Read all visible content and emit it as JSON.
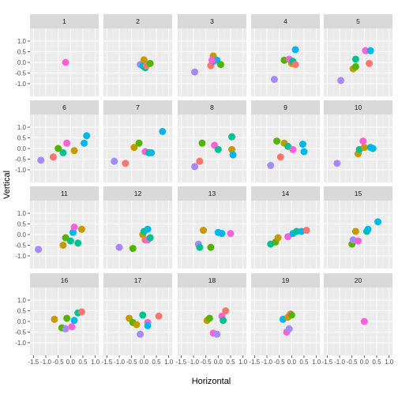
{
  "chart_data": {
    "type": "scatter",
    "faceted": true,
    "xlabel": "Horizontal",
    "ylabel": "Vertical",
    "xlim": [
      -1.5,
      1.0
    ],
    "ylim": [
      -1.5,
      1.5
    ],
    "x_ticks": [
      -1.5,
      -1.0,
      -0.5,
      0.0,
      0.5,
      1.0
    ],
    "x_tick_labels": [
      "-1.5",
      "-1.0",
      "-0.5",
      "0.0",
      "0.5",
      "1.0"
    ],
    "y_ticks": [
      -1.0,
      -0.5,
      0.0,
      0.5,
      1.0
    ],
    "y_tick_labels": [
      "-1.0",
      "-0.5",
      "0.0",
      "0.5",
      "1.0"
    ],
    "grid": true,
    "legend": "none",
    "colors": {
      "panel_background": "#ebebeb",
      "strip_background": "#d9d9d9",
      "grid_major": "#ffffff",
      "grid_minor": "#f2f2f2",
      "series": [
        "#f8766d",
        "#c49a00",
        "#53b400",
        "#00c094",
        "#00b6eb",
        "#a58aff",
        "#fb61d7"
      ]
    },
    "panels": [
      {
        "label": "1",
        "points": [
          {
            "x": -0.2,
            "y": 0.0,
            "c": 6
          }
        ]
      },
      {
        "label": "2",
        "points": [
          {
            "x": -0.15,
            "y": -0.1,
            "c": 5
          },
          {
            "x": -0.05,
            "y": -0.15,
            "c": 4
          },
          {
            "x": 0.0,
            "y": -0.2,
            "c": 4
          },
          {
            "x": 0.0,
            "y": 0.12,
            "c": 1
          },
          {
            "x": 0.05,
            "y": -0.25,
            "c": 3
          },
          {
            "x": 0.1,
            "y": -0.15,
            "c": 0
          },
          {
            "x": 0.25,
            "y": -0.05,
            "c": 2
          }
        ]
      },
      {
        "label": "3",
        "points": [
          {
            "x": -0.95,
            "y": -0.45,
            "c": 5
          },
          {
            "x": -0.3,
            "y": -0.15,
            "c": 0
          },
          {
            "x": -0.2,
            "y": 0.3,
            "c": 1
          },
          {
            "x": -0.2,
            "y": 0.05,
            "c": 4
          },
          {
            "x": -0.05,
            "y": 0.1,
            "c": 4
          },
          {
            "x": 0.1,
            "y": -0.1,
            "c": 2
          },
          {
            "x": -0.25,
            "y": 0.1,
            "c": 6
          }
        ]
      },
      {
        "label": "4",
        "points": [
          {
            "x": -0.7,
            "y": -0.8,
            "c": 5
          },
          {
            "x": -0.3,
            "y": 0.1,
            "c": 2
          },
          {
            "x": -0.1,
            "y": 0.15,
            "c": 6
          },
          {
            "x": 0.0,
            "y": -0.05,
            "c": 1
          },
          {
            "x": 0.05,
            "y": 0.05,
            "c": 3
          },
          {
            "x": 0.15,
            "y": 0.6,
            "c": 4
          },
          {
            "x": 0.15,
            "y": -0.1,
            "c": 0
          }
        ]
      },
      {
        "label": "5",
        "points": [
          {
            "x": -0.95,
            "y": -0.85,
            "c": 5
          },
          {
            "x": -0.45,
            "y": -0.3,
            "c": 1
          },
          {
            "x": -0.35,
            "y": -0.2,
            "c": 2
          },
          {
            "x": -0.35,
            "y": 0.15,
            "c": 3
          },
          {
            "x": 0.05,
            "y": 0.55,
            "c": 6
          },
          {
            "x": 0.25,
            "y": 0.55,
            "c": 4
          },
          {
            "x": 0.2,
            "y": -0.05,
            "c": 0
          }
        ]
      },
      {
        "label": "6",
        "points": [
          {
            "x": -1.2,
            "y": -0.55,
            "c": 5
          },
          {
            "x": -0.7,
            "y": -0.4,
            "c": 0
          },
          {
            "x": -0.5,
            "y": 0.0,
            "c": 2
          },
          {
            "x": -0.3,
            "y": -0.2,
            "c": 3
          },
          {
            "x": -0.15,
            "y": 0.25,
            "c": 6
          },
          {
            "x": 0.15,
            "y": -0.1,
            "c": 1
          },
          {
            "x": 0.55,
            "y": 0.25,
            "c": 4
          },
          {
            "x": 0.65,
            "y": 0.6,
            "c": 4
          }
        ]
      },
      {
        "label": "7",
        "points": [
          {
            "x": -1.2,
            "y": -0.6,
            "c": 5
          },
          {
            "x": -0.75,
            "y": -0.7,
            "c": 0
          },
          {
            "x": -0.4,
            "y": 0.05,
            "c": 1
          },
          {
            "x": -0.2,
            "y": 0.25,
            "c": 2
          },
          {
            "x": 0.05,
            "y": -0.15,
            "c": 6
          },
          {
            "x": 0.2,
            "y": -0.2,
            "c": 3
          },
          {
            "x": 0.3,
            "y": -0.2,
            "c": 4
          },
          {
            "x": 0.75,
            "y": 0.8,
            "c": 4
          }
        ]
      },
      {
        "label": "8",
        "points": [
          {
            "x": -0.95,
            "y": -0.85,
            "c": 5
          },
          {
            "x": -0.75,
            "y": -0.6,
            "c": 0
          },
          {
            "x": -0.65,
            "y": 0.25,
            "c": 2
          },
          {
            "x": -0.15,
            "y": 0.15,
            "c": 6
          },
          {
            "x": 0.0,
            "y": -0.05,
            "c": 3
          },
          {
            "x": 0.55,
            "y": 0.55,
            "c": 3
          },
          {
            "x": 0.55,
            "y": -0.05,
            "c": 1
          },
          {
            "x": 0.6,
            "y": -0.3,
            "c": 4
          }
        ]
      },
      {
        "label": "9",
        "points": [
          {
            "x": -0.85,
            "y": -0.8,
            "c": 5
          },
          {
            "x": -0.6,
            "y": 0.35,
            "c": 2
          },
          {
            "x": -0.45,
            "y": -0.4,
            "c": 0
          },
          {
            "x": -0.3,
            "y": 0.25,
            "c": 1
          },
          {
            "x": -0.15,
            "y": 0.1,
            "c": 3
          },
          {
            "x": 0.05,
            "y": -0.05,
            "c": 6
          },
          {
            "x": 0.45,
            "y": 0.2,
            "c": 4
          },
          {
            "x": 0.5,
            "y": -0.15,
            "c": 4
          }
        ]
      },
      {
        "label": "10",
        "points": [
          {
            "x": -1.1,
            "y": -0.7,
            "c": 5
          },
          {
            "x": -0.25,
            "y": -0.25,
            "c": 1
          },
          {
            "x": -0.2,
            "y": -0.05,
            "c": 3
          },
          {
            "x": -0.05,
            "y": 0.35,
            "c": 6
          },
          {
            "x": 0.0,
            "y": 0.05,
            "c": 1
          },
          {
            "x": 0.25,
            "y": 0.05,
            "c": 4
          },
          {
            "x": 0.35,
            "y": 0.0,
            "c": 4
          }
        ]
      },
      {
        "label": "11",
        "points": [
          {
            "x": -1.3,
            "y": -0.7,
            "c": 5
          },
          {
            "x": -0.3,
            "y": -0.5,
            "c": 1
          },
          {
            "x": -0.2,
            "y": -0.15,
            "c": 2
          },
          {
            "x": 0.0,
            "y": -0.3,
            "c": 3
          },
          {
            "x": 0.1,
            "y": 0.1,
            "c": 4
          },
          {
            "x": 0.15,
            "y": 0.35,
            "c": 6
          },
          {
            "x": 0.3,
            "y": -0.4,
            "c": 3
          },
          {
            "x": 0.45,
            "y": 0.25,
            "c": 1
          }
        ]
      },
      {
        "label": "12",
        "points": [
          {
            "x": -1.0,
            "y": -0.6,
            "c": 5
          },
          {
            "x": -0.45,
            "y": -0.65,
            "c": 2
          },
          {
            "x": -0.05,
            "y": 0.0,
            "c": 1
          },
          {
            "x": 0.0,
            "y": 0.15,
            "c": 3
          },
          {
            "x": 0.05,
            "y": -0.25,
            "c": 0
          },
          {
            "x": 0.15,
            "y": -0.25,
            "c": 6
          },
          {
            "x": 0.25,
            "y": -0.15,
            "c": 3
          },
          {
            "x": 0.15,
            "y": 0.25,
            "c": 4
          }
        ]
      },
      {
        "label": "13",
        "points": [
          {
            "x": -0.8,
            "y": -0.45,
            "c": 5
          },
          {
            "x": -0.75,
            "y": -0.6,
            "c": 3
          },
          {
            "x": -0.6,
            "y": 0.2,
            "c": 1
          },
          {
            "x": -0.3,
            "y": -0.6,
            "c": 2
          },
          {
            "x": 0.0,
            "y": 0.1,
            "c": 4
          },
          {
            "x": 0.15,
            "y": 0.05,
            "c": 4
          },
          {
            "x": 0.5,
            "y": 0.05,
            "c": 6
          }
        ]
      },
      {
        "label": "14",
        "points": [
          {
            "x": -0.85,
            "y": -0.45,
            "c": 3
          },
          {
            "x": -0.65,
            "y": -0.35,
            "c": 2
          },
          {
            "x": -0.55,
            "y": -0.15,
            "c": 1
          },
          {
            "x": -0.15,
            "y": -0.1,
            "c": 6
          },
          {
            "x": 0.05,
            "y": 0.05,
            "c": 4
          },
          {
            "x": 0.2,
            "y": 0.15,
            "c": 3
          },
          {
            "x": 0.4,
            "y": 0.15,
            "c": 4
          },
          {
            "x": 0.6,
            "y": 0.2,
            "c": 0
          }
        ]
      },
      {
        "label": "15",
        "points": [
          {
            "x": -0.5,
            "y": -0.45,
            "c": 2
          },
          {
            "x": -0.45,
            "y": -0.25,
            "c": 5
          },
          {
            "x": -0.35,
            "y": 0.15,
            "c": 1
          },
          {
            "x": -0.25,
            "y": -0.3,
            "c": 6
          },
          {
            "x": 0.1,
            "y": 0.15,
            "c": 3
          },
          {
            "x": 0.15,
            "y": 0.25,
            "c": 4
          },
          {
            "x": 0.55,
            "y": 0.6,
            "c": 4
          }
        ]
      },
      {
        "label": "16",
        "points": [
          {
            "x": -0.65,
            "y": 0.1,
            "c": 1
          },
          {
            "x": -0.35,
            "y": -0.3,
            "c": 2
          },
          {
            "x": -0.2,
            "y": -0.35,
            "c": 5
          },
          {
            "x": -0.15,
            "y": 0.15,
            "c": 2
          },
          {
            "x": 0.05,
            "y": -0.25,
            "c": 6
          },
          {
            "x": 0.15,
            "y": 0.05,
            "c": 4
          },
          {
            "x": 0.3,
            "y": 0.4,
            "c": 3
          },
          {
            "x": 0.45,
            "y": 0.45,
            "c": 0
          }
        ]
      },
      {
        "label": "17",
        "points": [
          {
            "x": -0.6,
            "y": 0.15,
            "c": 1
          },
          {
            "x": -0.45,
            "y": -0.05,
            "c": 2
          },
          {
            "x": -0.3,
            "y": -0.15,
            "c": 1
          },
          {
            "x": -0.15,
            "y": -0.6,
            "c": 5
          },
          {
            "x": -0.05,
            "y": 0.3,
            "c": 3
          },
          {
            "x": 0.15,
            "y": -0.05,
            "c": 6
          },
          {
            "x": 0.15,
            "y": -0.2,
            "c": 4
          },
          {
            "x": 0.6,
            "y": 0.25,
            "c": 0
          }
        ]
      },
      {
        "label": "18",
        "points": [
          {
            "x": -0.45,
            "y": 0.05,
            "c": 1
          },
          {
            "x": -0.35,
            "y": 0.15,
            "c": 2
          },
          {
            "x": -0.2,
            "y": -0.55,
            "c": 6
          },
          {
            "x": -0.05,
            "y": -0.6,
            "c": 5
          },
          {
            "x": 0.15,
            "y": 0.25,
            "c": 6
          },
          {
            "x": 0.2,
            "y": 0.05,
            "c": 3
          },
          {
            "x": 0.3,
            "y": 0.5,
            "c": 0
          }
        ]
      },
      {
        "label": "19",
        "points": [
          {
            "x": -0.35,
            "y": 0.1,
            "c": 4
          },
          {
            "x": -0.2,
            "y": -0.5,
            "c": 6
          },
          {
            "x": -0.15,
            "y": 0.2,
            "c": 1
          },
          {
            "x": -0.1,
            "y": -0.35,
            "c": 5
          },
          {
            "x": -0.05,
            "y": 0.35,
            "c": 0
          },
          {
            "x": 0.0,
            "y": 0.3,
            "c": 2
          }
        ]
      },
      {
        "label": "20",
        "points": [
          {
            "x": 0.0,
            "y": 0.0,
            "c": 6
          }
        ]
      }
    ]
  }
}
